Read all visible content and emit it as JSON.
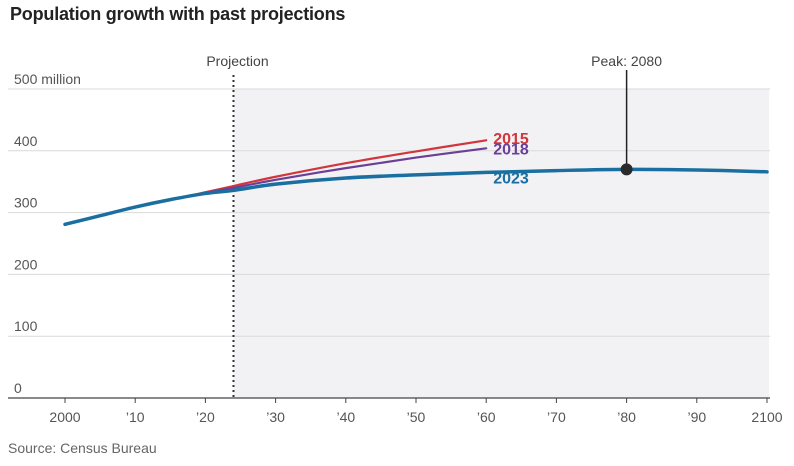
{
  "title": "Population growth with past projections",
  "source": "Source: Census Bureau",
  "chart_data": {
    "type": "line",
    "title": "Population growth with past projections",
    "xlabel": "",
    "ylabel": "",
    "xlim": [
      1996,
      2100
    ],
    "ylim": [
      0,
      500
    ],
    "y_ticks": [
      {
        "value": 0,
        "label": "0"
      },
      {
        "value": 100,
        "label": "100"
      },
      {
        "value": 200,
        "label": "200"
      },
      {
        "value": 300,
        "label": "300"
      },
      {
        "value": 400,
        "label": "400"
      },
      {
        "value": 500,
        "label": "500 million"
      }
    ],
    "x_ticks": [
      {
        "value": 2000,
        "label": "2000"
      },
      {
        "value": 2010,
        "label": "’10"
      },
      {
        "value": 2020,
        "label": "’20"
      },
      {
        "value": 2030,
        "label": "’30"
      },
      {
        "value": 2040,
        "label": "’40"
      },
      {
        "value": 2050,
        "label": "’50"
      },
      {
        "value": 2060,
        "label": "’60"
      },
      {
        "value": 2070,
        "label": "’70"
      },
      {
        "value": 2080,
        "label": "’80"
      },
      {
        "value": 2090,
        "label": "’90"
      },
      {
        "value": 2100,
        "label": "2100"
      }
    ],
    "grid": true,
    "projection_shade": {
      "from": 2024,
      "to": 2100
    },
    "projection_line": {
      "x": 2024,
      "label": "Projection"
    },
    "peak": {
      "x": 2080,
      "y": 370,
      "label": "Peak: 2080"
    },
    "series": [
      {
        "name": "2023",
        "color": "#1a6fa0",
        "x": [
          2000,
          2005,
          2010,
          2015,
          2020,
          2024,
          2030,
          2040,
          2050,
          2060,
          2070,
          2080,
          2090,
          2100
        ],
        "y": [
          281,
          295,
          309,
          321,
          331,
          336,
          346,
          356,
          361,
          365,
          368,
          370,
          369,
          366
        ]
      },
      {
        "name": "2015",
        "color": "#d0363b",
        "x": [
          2017,
          2020,
          2024,
          2030,
          2040,
          2050,
          2060
        ],
        "y": [
          325,
          333,
          343,
          358,
          380,
          399,
          417
        ]
      },
      {
        "name": "2018",
        "color": "#6b3f96",
        "x": [
          2017,
          2020,
          2024,
          2030,
          2040,
          2050,
          2060
        ],
        "y": [
          325,
          332,
          340,
          353,
          372,
          389,
          404
        ]
      }
    ]
  }
}
